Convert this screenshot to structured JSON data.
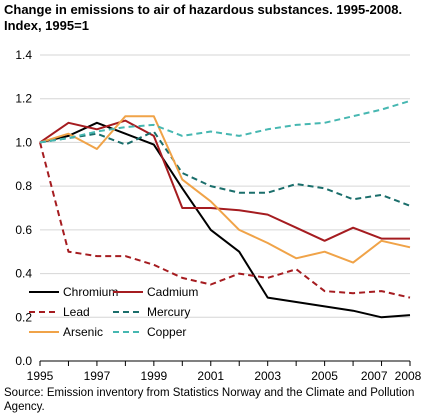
{
  "title_line1": "Change in emissions to air of hazardous substances. 1995-2008.",
  "title_line2": "Index, 1995=1",
  "source": "Source: Emission inventory from Statistics Norway and the Climate and Pollution Agency.",
  "chart_data": {
    "type": "line",
    "x": [
      1995,
      1996,
      1997,
      1998,
      1999,
      2000,
      2001,
      2002,
      2003,
      2004,
      2005,
      2006,
      2007,
      2008
    ],
    "x_tick_labels": [
      "1995",
      "1997",
      "1999",
      "2001",
      "2003",
      "2005",
      "2007",
      "2008"
    ],
    "y_tick_labels": [
      "0.0",
      "0.2",
      "0.4",
      "0.6",
      "0.8",
      "1.0",
      "1.2",
      "1.4"
    ],
    "ylim": [
      0,
      1.4
    ],
    "grid": "horizontal",
    "legend_position": "bottom-right",
    "series": [
      {
        "name": "Chromium",
        "color": "#000000",
        "dash": "solid",
        "values": [
          1.0,
          1.03,
          1.09,
          1.04,
          0.99,
          0.79,
          0.6,
          0.5,
          0.29,
          0.27,
          0.25,
          0.23,
          0.2,
          0.21
        ]
      },
      {
        "name": "Cadmium",
        "color": "#a51c20",
        "dash": "solid",
        "values": [
          1.0,
          1.09,
          1.06,
          1.1,
          1.03,
          0.7,
          0.7,
          0.69,
          0.67,
          0.61,
          0.55,
          0.61,
          0.56,
          0.56
        ]
      },
      {
        "name": "Lead",
        "color": "#a51c20",
        "dash": "dashed",
        "values": [
          1.0,
          0.5,
          0.48,
          0.48,
          0.44,
          0.38,
          0.35,
          0.4,
          0.38,
          0.42,
          0.32,
          0.31,
          0.32,
          0.29
        ]
      },
      {
        "name": "Mercury",
        "color": "#1a6e6b",
        "dash": "dashed",
        "values": [
          1.0,
          1.02,
          1.04,
          0.99,
          1.05,
          0.86,
          0.8,
          0.77,
          0.77,
          0.81,
          0.79,
          0.74,
          0.76,
          0.71
        ]
      },
      {
        "name": "Arsenic",
        "color": "#f0a348",
        "dash": "solid",
        "values": [
          1.0,
          1.04,
          0.97,
          1.12,
          1.12,
          0.83,
          0.73,
          0.6,
          0.54,
          0.47,
          0.5,
          0.45,
          0.55,
          0.52
        ]
      },
      {
        "name": "Copper",
        "color": "#46b7b1",
        "dash": "dashed",
        "values": [
          1.0,
          1.02,
          1.05,
          1.07,
          1.08,
          1.03,
          1.05,
          1.03,
          1.06,
          1.08,
          1.09,
          1.12,
          1.15,
          1.19
        ]
      }
    ]
  }
}
